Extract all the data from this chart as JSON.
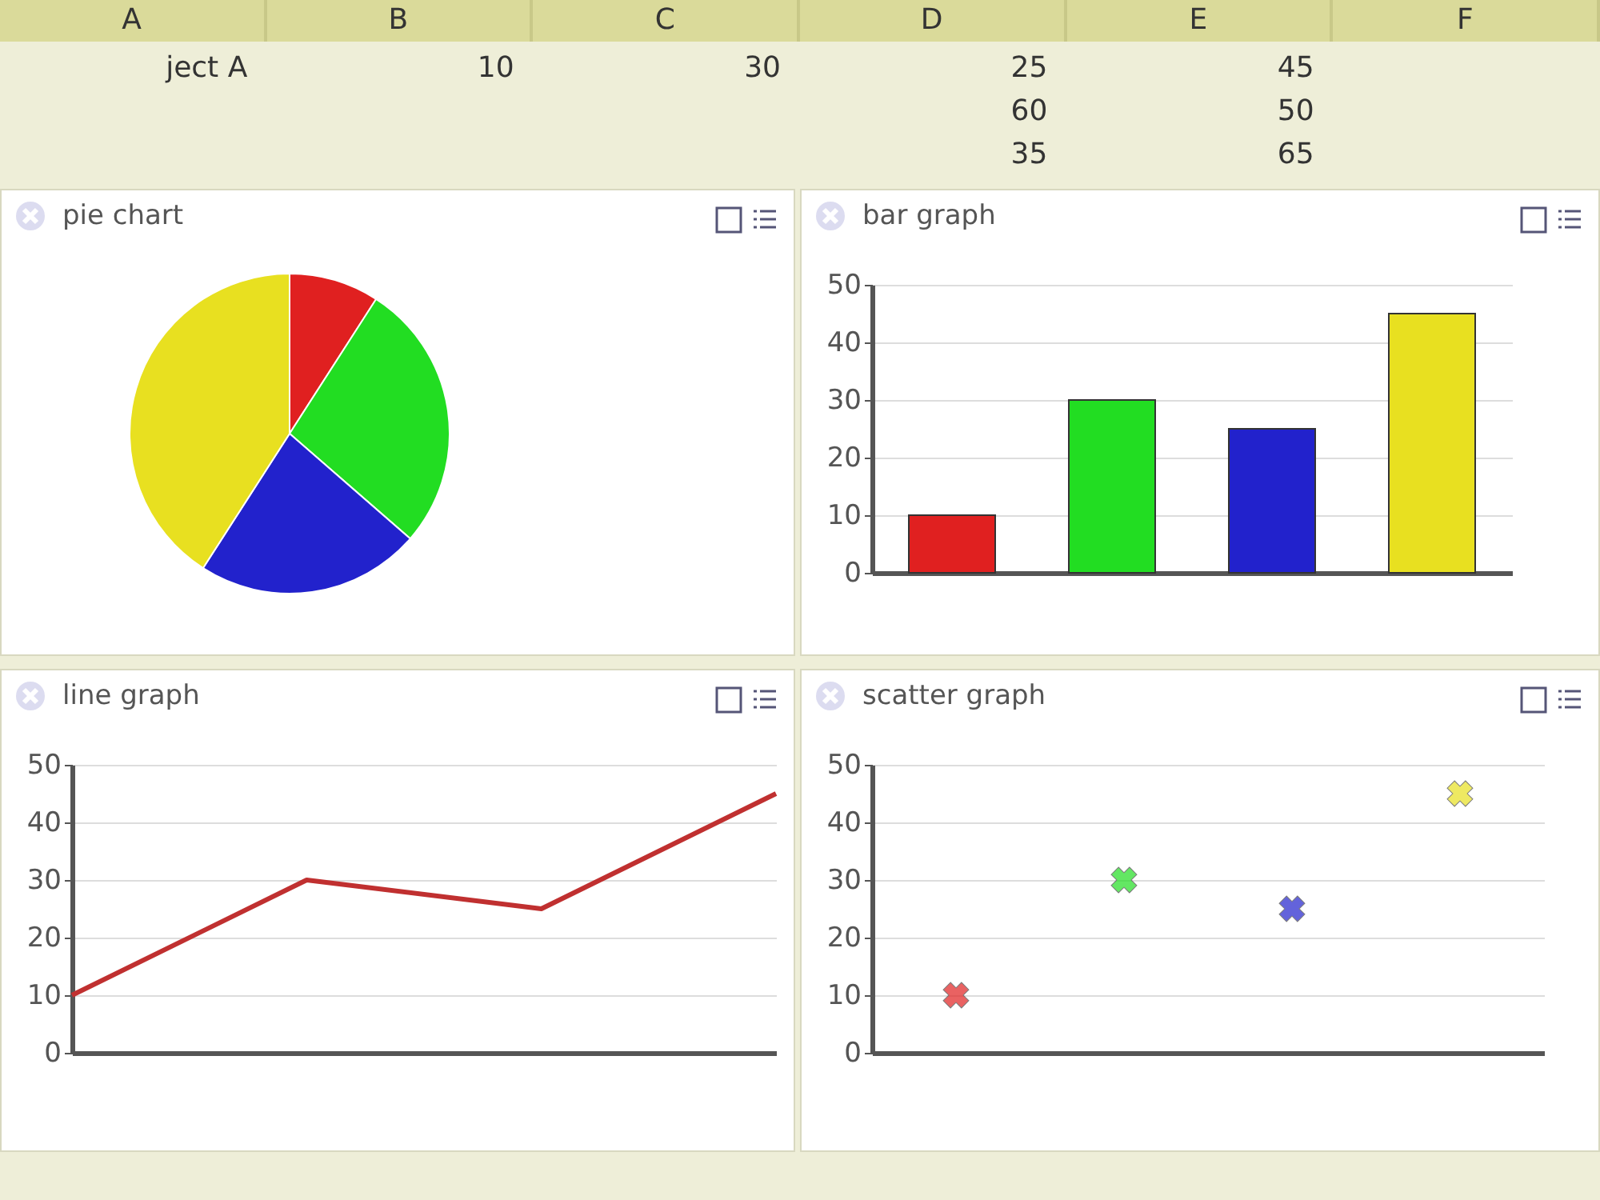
{
  "chart_data": [
    {
      "type": "other",
      "categories": [
        "A",
        "B",
        "C",
        "D",
        "E",
        "F"
      ],
      "annotations": [
        "ject A",
        "10",
        "30",
        "25",
        "45",
        "60",
        "50",
        "35",
        "65"
      ]
    },
    {
      "type": "pie",
      "title": "pie chart",
      "categories": [
        null,
        null,
        null,
        null
      ],
      "values": [
        9.1,
        27.3,
        22.7,
        40.9
      ],
      "colors": [
        "#e02020",
        "#22dd22",
        "#2222cc",
        "#e8e020"
      ]
    },
    {
      "type": "bar",
      "title": "bar graph",
      "categories": [
        null,
        null,
        null,
        null
      ],
      "values": [
        10,
        30,
        25,
        45
      ],
      "colors": [
        "#e02020",
        "#22dd22",
        "#2222cc",
        "#e8e020"
      ],
      "ylim": [
        0,
        50
      ],
      "yticks": [
        0,
        10,
        20,
        30,
        40,
        50
      ],
      "grid": "y"
    },
    {
      "type": "line",
      "title": "line graph",
      "categories": [
        null,
        null,
        null,
        null
      ],
      "series": [
        {
          "color": "#c03030",
          "values": [
            10,
            30,
            25,
            45
          ]
        }
      ],
      "ylim": [
        0,
        50
      ],
      "yticks": [
        0,
        10,
        20,
        30,
        40,
        50
      ],
      "grid": "y",
      "line_style": "solid"
    },
    {
      "type": "scatter",
      "title": "scatter graph",
      "categories": [
        null,
        null,
        null,
        null
      ],
      "values": [
        10,
        30,
        25,
        45
      ],
      "colors": [
        "#e02020",
        "#22dd22",
        "#2222cc",
        "#e8e020"
      ],
      "ylim": [
        0,
        50
      ],
      "yticks": [
        0,
        10,
        20,
        30,
        40,
        50
      ],
      "grid": "y",
      "marker": "cross"
    }
  ]
}
